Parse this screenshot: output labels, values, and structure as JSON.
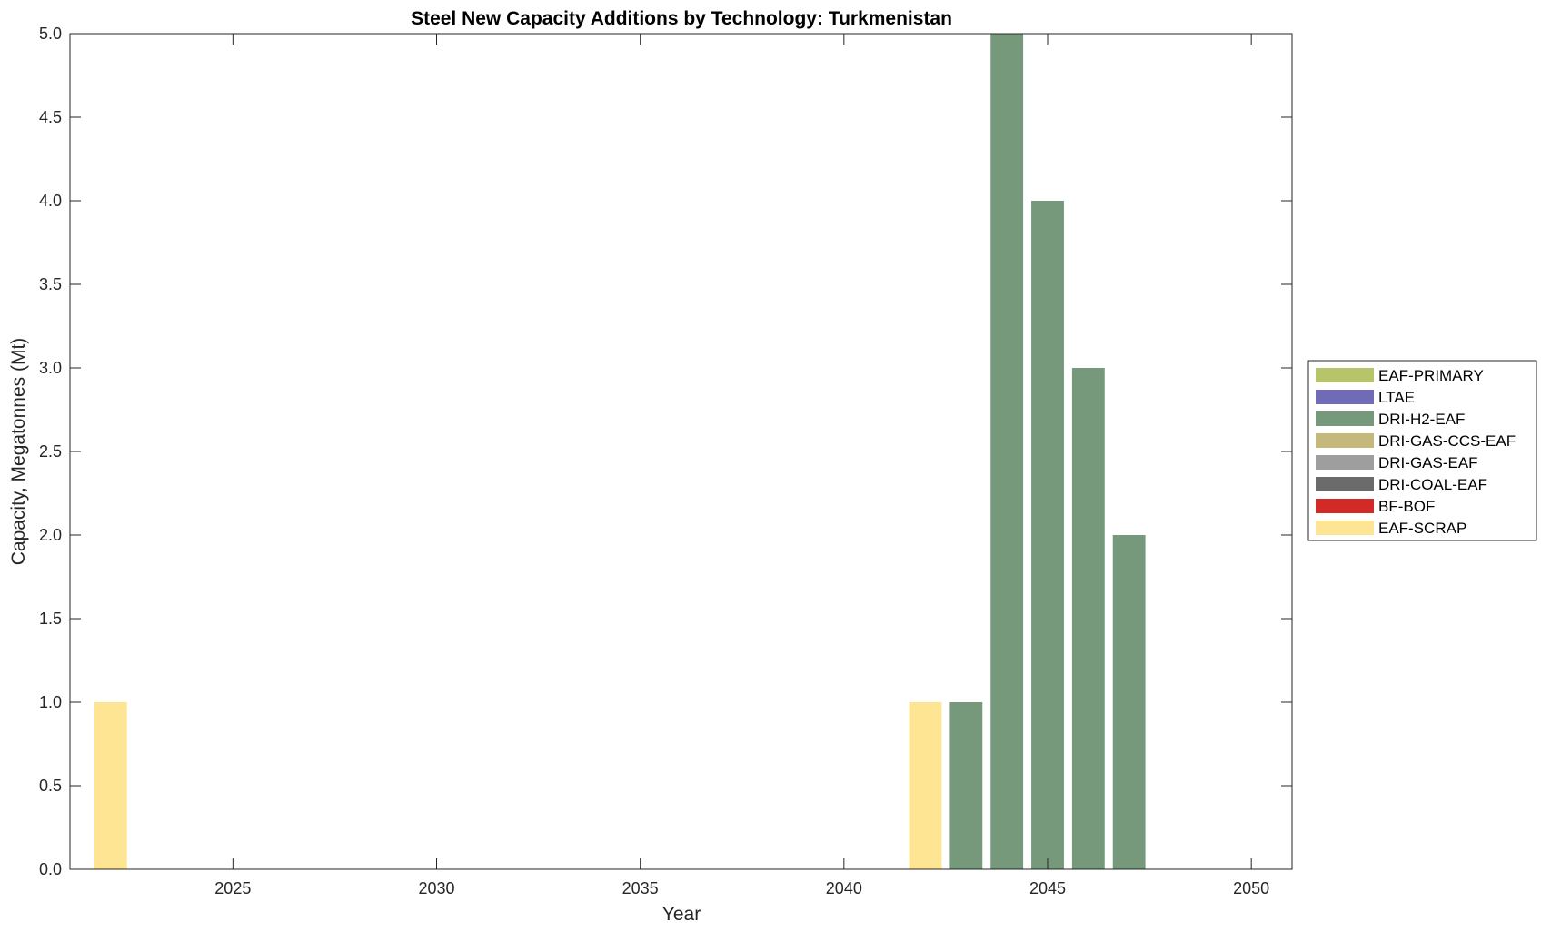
{
  "chart_data": {
    "type": "bar",
    "stacked": true,
    "title": "Steel New Capacity Additions by Technology: Turkmenistan",
    "xlabel": "Year",
    "ylabel": "Capacity, Megatonnes (Mt)",
    "xlim": [
      2021,
      2051
    ],
    "ylim": [
      0,
      5
    ],
    "grid": false,
    "legend_position": "right",
    "x_ticks": [
      2025,
      2030,
      2035,
      2040,
      2045,
      2050
    ],
    "x_tick_labels": [
      "2025",
      "2030",
      "2035",
      "2040",
      "2045",
      "2050"
    ],
    "y_ticks": [
      0,
      0.5,
      1,
      1.5,
      2,
      2.5,
      3,
      3.5,
      4,
      4.5,
      5
    ],
    "y_tick_labels": [
      "0.0",
      "0.5",
      "1.0",
      "1.5",
      "2.0",
      "2.5",
      "3.0",
      "3.5",
      "4.0",
      "4.5",
      "5.0"
    ],
    "x": [
      2022,
      2042,
      2043,
      2044,
      2045,
      2046,
      2047
    ],
    "series": [
      {
        "name": "EAF-PRIMARY",
        "color": "#b8c46a",
        "values": [
          0,
          0,
          0,
          0,
          0,
          0,
          0
        ]
      },
      {
        "name": "LTAE",
        "color": "#6f6bb8",
        "values": [
          0,
          0,
          0,
          0,
          0,
          0,
          0
        ]
      },
      {
        "name": "DRI-H2-EAF",
        "color": "#77997b",
        "values": [
          0,
          0,
          1,
          5,
          4,
          3,
          2
        ]
      },
      {
        "name": "DRI-GAS-CCS-EAF",
        "color": "#c4b87c",
        "values": [
          0,
          0,
          0,
          0,
          0,
          0,
          0
        ]
      },
      {
        "name": "DRI-GAS-EAF",
        "color": "#9e9e9e",
        "values": [
          0,
          0,
          0,
          0,
          0,
          0,
          0
        ]
      },
      {
        "name": "DRI-COAL-EAF",
        "color": "#6b6b6b",
        "values": [
          0,
          0,
          0,
          0,
          0,
          0,
          0
        ]
      },
      {
        "name": "BF-BOF",
        "color": "#d42a27",
        "values": [
          0,
          0,
          0,
          0,
          0,
          0,
          0
        ]
      },
      {
        "name": "EAF-SCRAP",
        "color": "#fde594",
        "values": [
          1,
          1,
          0,
          0,
          0,
          0,
          0
        ]
      }
    ]
  }
}
